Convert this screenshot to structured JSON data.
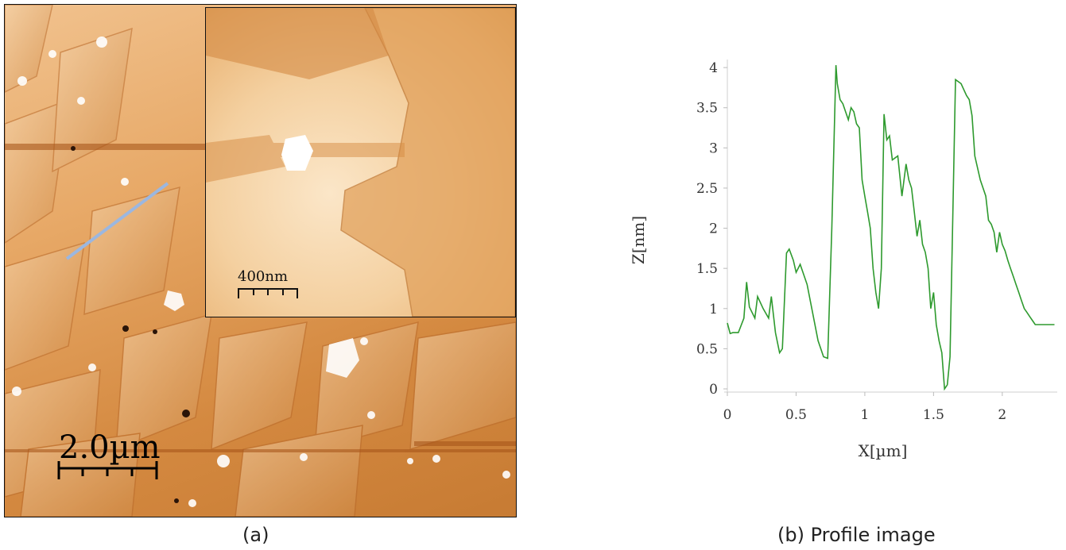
{
  "panel_a": {
    "scale_bar_main": "2.0µm",
    "scale_bar_inset": "400nm",
    "caption": "(a)"
  },
  "panel_b": {
    "caption": "(b) Profile image"
  },
  "colors": {
    "line": "#2e9a2e",
    "profile_marker": "#9bb7e0",
    "afm_light": "#f6dcb8",
    "afm_dark": "#c27226"
  },
  "chart_data": {
    "type": "line",
    "xlabel": "X[µm]",
    "ylabel": "Z[nm]",
    "xlim": [
      0,
      2.4
    ],
    "ylim": [
      0,
      4.1
    ],
    "xticks": [
      "0",
      "0.5",
      "1",
      "1.5",
      "2"
    ],
    "xtick_values": [
      0,
      0.5,
      1,
      1.5,
      2
    ],
    "yticks": [
      "0",
      "0.5",
      "1",
      "1.5",
      "2",
      "2.5",
      "3",
      "3.5",
      "4"
    ],
    "ytick_values": [
      0,
      0.5,
      1,
      1.5,
      2,
      2.5,
      3,
      3.5,
      4
    ],
    "series": [
      {
        "x": [
          0,
          0.02,
          0.04,
          0.08,
          0.12,
          0.14,
          0.16,
          0.2,
          0.22,
          0.26,
          0.3,
          0.32,
          0.35,
          0.38,
          0.4,
          0.43,
          0.45,
          0.48,
          0.5,
          0.53,
          0.55,
          0.58,
          0.62,
          0.66,
          0.7,
          0.73,
          0.76,
          0.79,
          0.8,
          0.82,
          0.84,
          0.86,
          0.88,
          0.9,
          0.92,
          0.94,
          0.96,
          0.98,
          1.0,
          1.02,
          1.04,
          1.06,
          1.08,
          1.1,
          1.12,
          1.14,
          1.16,
          1.18,
          1.2,
          1.24,
          1.27,
          1.3,
          1.32,
          1.34,
          1.36,
          1.38,
          1.4,
          1.42,
          1.44,
          1.46,
          1.48,
          1.5,
          1.52,
          1.54,
          1.56,
          1.58,
          1.6,
          1.62,
          1.66,
          1.7,
          1.74,
          1.76,
          1.78,
          1.8,
          1.84,
          1.88,
          1.9,
          1.92,
          1.94,
          1.96,
          1.98,
          2.0,
          2.02,
          2.04,
          2.06,
          2.08,
          2.1,
          2.12,
          2.14,
          2.16,
          2.18,
          2.2,
          2.22,
          2.24,
          2.26,
          2.28,
          2.3,
          2.32,
          2.34,
          2.36,
          2.38
        ],
        "y": [
          0.82,
          0.69,
          0.7,
          0.7,
          0.88,
          1.33,
          1.02,
          0.88,
          1.15,
          1.0,
          0.88,
          1.15,
          0.7,
          0.45,
          0.5,
          1.69,
          1.74,
          1.6,
          1.45,
          1.55,
          1.45,
          1.3,
          0.95,
          0.6,
          0.4,
          0.38,
          2.0,
          4.03,
          3.8,
          3.6,
          3.55,
          3.45,
          3.35,
          3.5,
          3.45,
          3.3,
          3.25,
          2.6,
          2.4,
          2.2,
          2.0,
          1.5,
          1.2,
          1.0,
          1.5,
          3.42,
          3.1,
          3.15,
          2.85,
          2.9,
          2.4,
          2.8,
          2.6,
          2.5,
          2.2,
          1.9,
          2.1,
          1.8,
          1.7,
          1.5,
          1.0,
          1.2,
          0.8,
          0.6,
          0.45,
          0.0,
          0.05,
          0.4,
          3.85,
          3.8,
          3.65,
          3.6,
          3.4,
          2.9,
          2.6,
          2.4,
          2.1,
          2.05,
          1.95,
          1.7,
          1.95,
          1.8,
          1.72,
          1.6,
          1.5,
          1.4,
          1.3,
          1.2,
          1.1,
          1.0,
          0.95,
          0.9,
          0.85,
          0.8,
          0.8,
          0.8,
          0.8,
          0.8,
          0.8,
          0.8,
          0.8
        ]
      }
    ]
  }
}
